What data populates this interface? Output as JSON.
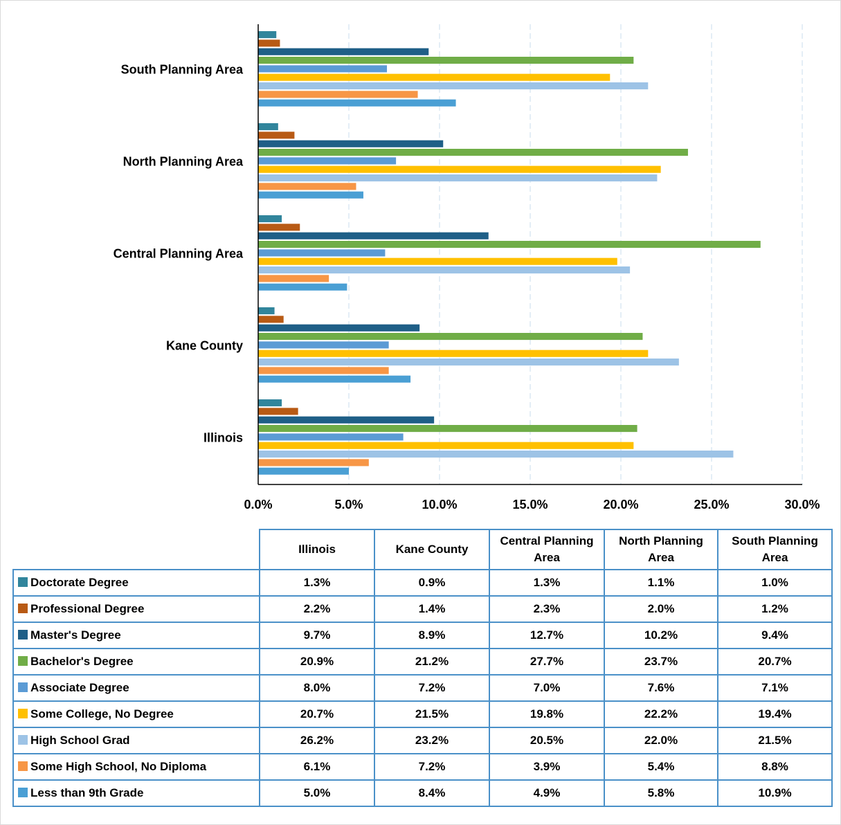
{
  "chart_data": {
    "type": "bar",
    "orientation": "horizontal",
    "categories": [
      "Illinois",
      "Kane County",
      "Central Planning Area",
      "North Planning Area",
      "South Planning Area"
    ],
    "series": [
      {
        "name": "Doctorate Degree",
        "color": "#31859c",
        "values": [
          1.3,
          0.9,
          1.3,
          1.1,
          1.0
        ],
        "value_labels": [
          "1.3%",
          "0.9%",
          "1.3%",
          "1.1%",
          "1.0%"
        ]
      },
      {
        "name": "Professional Degree",
        "color": "#b85a14",
        "values": [
          2.2,
          1.4,
          2.3,
          2.0,
          1.2
        ],
        "value_labels": [
          "2.2%",
          "1.4%",
          "2.3%",
          "2.0%",
          "1.2%"
        ]
      },
      {
        "name": "Master's Degree",
        "color": "#1f5f87",
        "values": [
          9.7,
          8.9,
          12.7,
          10.2,
          9.4
        ],
        "value_labels": [
          "9.7%",
          "8.9%",
          "12.7%",
          "10.2%",
          "9.4%"
        ]
      },
      {
        "name": "Bachelor's Degree",
        "color": "#70ad47",
        "values": [
          20.9,
          21.2,
          27.7,
          23.7,
          20.7
        ],
        "value_labels": [
          "20.9%",
          "21.2%",
          "27.7%",
          "23.7%",
          "20.7%"
        ]
      },
      {
        "name": "Associate Degree",
        "color": "#5b9bd5",
        "values": [
          8.0,
          7.2,
          7.0,
          7.6,
          7.1
        ],
        "value_labels": [
          "8.0%",
          "7.2%",
          "7.0%",
          "7.6%",
          "7.1%"
        ]
      },
      {
        "name": "Some College, No Degree",
        "color": "#ffc000",
        "values": [
          20.7,
          21.5,
          19.8,
          22.2,
          19.4
        ],
        "value_labels": [
          "20.7%",
          "21.5%",
          "19.8%",
          "22.2%",
          "19.4%"
        ]
      },
      {
        "name": "High School Grad",
        "color": "#9dc3e6",
        "values": [
          26.2,
          23.2,
          20.5,
          22.0,
          21.5
        ],
        "value_labels": [
          "26.2%",
          "23.2%",
          "20.5%",
          "22.0%",
          "21.5%"
        ]
      },
      {
        "name": "Some High School, No Diploma",
        "color": "#f79646",
        "values": [
          6.1,
          7.2,
          3.9,
          5.4,
          8.8
        ],
        "value_labels": [
          "6.1%",
          "7.2%",
          "3.9%",
          "5.4%",
          "8.8%"
        ]
      },
      {
        "name": "Less than 9th Grade",
        "color": "#4a9fd4",
        "values": [
          5.0,
          8.4,
          4.9,
          5.8,
          10.9
        ],
        "value_labels": [
          "5.0%",
          "8.4%",
          "4.9%",
          "5.8%",
          "10.9%"
        ]
      }
    ],
    "xlim": [
      0,
      30
    ],
    "xticks": [
      {
        "value": 0,
        "label": "0.0%"
      },
      {
        "value": 5,
        "label": "5.0%"
      },
      {
        "value": 10,
        "label": "10.0%"
      },
      {
        "value": 15,
        "label": "15.0%"
      },
      {
        "value": 20,
        "label": "20.0%"
      },
      {
        "value": 25,
        "label": "25.0%"
      },
      {
        "value": 30,
        "label": "30.0%"
      }
    ],
    "grid": true
  }
}
